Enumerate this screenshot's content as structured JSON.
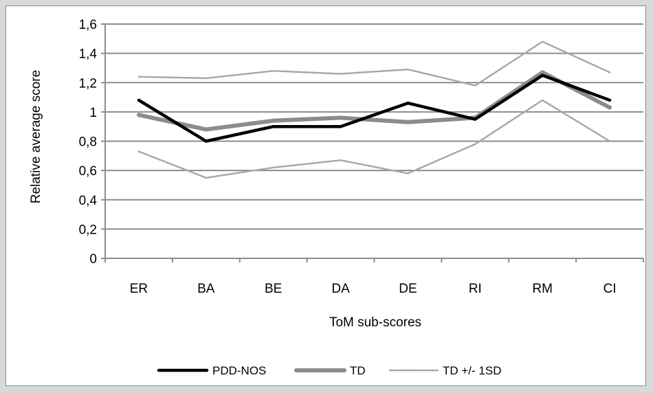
{
  "chart_data": {
    "type": "line",
    "categories": [
      "ER",
      "BA",
      "BE",
      "DA",
      "DE",
      "RI",
      "RM",
      "CI"
    ],
    "series": [
      {
        "name": "PDD-NOS",
        "values": [
          1.08,
          0.8,
          0.9,
          0.9,
          1.06,
          0.95,
          1.25,
          1.08
        ],
        "color": "#000000",
        "style": "solid-thick"
      },
      {
        "name": "TD",
        "values": [
          0.98,
          0.88,
          0.94,
          0.96,
          0.93,
          0.96,
          1.27,
          1.03
        ],
        "color": "#8c8c8c",
        "style": "solid-thicker"
      },
      {
        "name": "TD +/- 1SD",
        "values": [
          1.24,
          1.23,
          1.28,
          1.26,
          1.29,
          1.18,
          1.48,
          1.27
        ],
        "color": "#a6a6a6",
        "style": "dashed",
        "legend": true
      },
      {
        "name": "TD +/- 1SD",
        "values": [
          0.73,
          0.55,
          0.62,
          0.67,
          0.58,
          0.78,
          1.08,
          0.8
        ],
        "color": "#a6a6a6",
        "style": "dashed",
        "legend": false
      }
    ],
    "xlabel": "ToM sub-scores",
    "ylabel": "Relative average score",
    "ylim": [
      0,
      1.6
    ],
    "yticks": [
      "0",
      "0,2",
      "0,4",
      "0,6",
      "0,8",
      "1",
      "1,2",
      "1,4",
      "1,6"
    ],
    "ytick_values": [
      0,
      0.2,
      0.4,
      0.6,
      0.8,
      1.0,
      1.2,
      1.4,
      1.6
    ],
    "grid": true,
    "legend_position": "bottom"
  }
}
